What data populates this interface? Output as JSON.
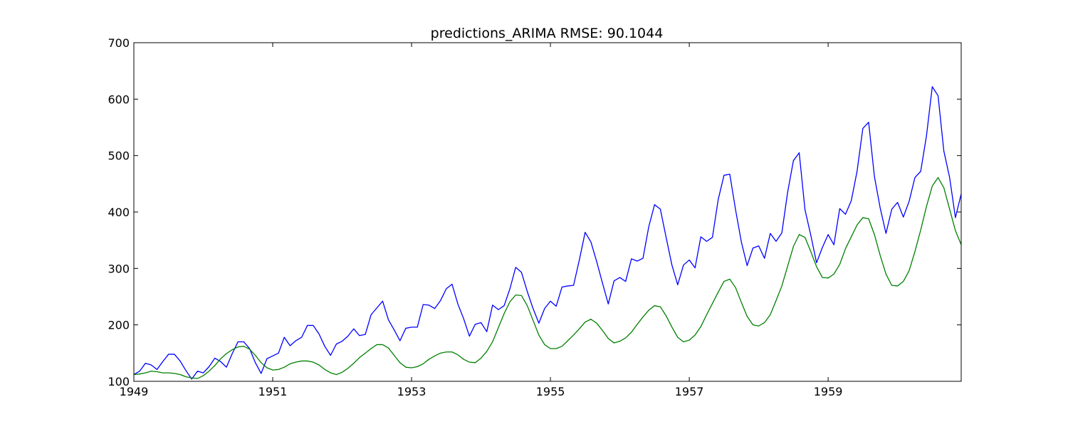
{
  "chart_data": {
    "type": "line",
    "title": "predictions_ARIMA RMSE: 90.1044",
    "xlabel": "",
    "ylabel": "",
    "x_start": "1949-01",
    "x_end": "1960-12",
    "xlim": [
      "1949-01",
      "1960-12"
    ],
    "ylim": [
      100,
      700
    ],
    "x_ticks": [
      "1949",
      "1951",
      "1953",
      "1955",
      "1957",
      "1959"
    ],
    "y_ticks": [
      100,
      200,
      300,
      400,
      500,
      600,
      700
    ],
    "grid": false,
    "legend": false,
    "colors": [
      "#0000ff",
      "#008000"
    ],
    "series": [
      {
        "color": "#0000ff",
        "values": [
          112,
          118,
          132,
          129,
          121,
          135,
          148,
          148,
          136,
          119,
          104,
          118,
          115,
          126,
          141,
          135,
          125,
          149,
          170,
          170,
          158,
          133,
          114,
          140,
          145,
          150,
          178,
          163,
          172,
          178,
          199,
          199,
          184,
          162,
          146,
          166,
          171,
          180,
          193,
          181,
          183,
          218,
          230,
          242,
          209,
          191,
          172,
          194,
          196,
          196,
          236,
          235,
          229,
          243,
          264,
          272,
          237,
          211,
          180,
          201,
          204,
          188,
          235,
          227,
          234,
          264,
          302,
          293,
          259,
          229,
          203,
          229,
          242,
          233,
          267,
          269,
          270,
          315,
          364,
          347,
          312,
          274,
          237,
          278,
          284,
          277,
          317,
          313,
          318,
          374,
          413,
          405,
          355,
          306,
          271,
          306,
          315,
          301,
          356,
          348,
          355,
          422,
          465,
          467,
          404,
          347,
          305,
          336,
          340,
          318,
          362,
          348,
          363,
          435,
          491,
          505,
          404,
          359,
          310,
          337,
          360,
          342,
          406,
          396,
          420,
          472,
          548,
          559,
          463,
          407,
          362,
          405,
          417,
          391,
          419,
          461,
          472,
          535,
          622,
          606,
          508,
          461,
          390,
          432
        ]
      },
      {
        "color": "#008000",
        "values": [
          112,
          113,
          115,
          118,
          117,
          115,
          115,
          114,
          112,
          108,
          106,
          105,
          110,
          118,
          128,
          140,
          149,
          156,
          161,
          162,
          157,
          146,
          133,
          124,
          120,
          121,
          125,
          131,
          134,
          136,
          136,
          134,
          129,
          121,
          115,
          112,
          116,
          123,
          132,
          142,
          150,
          158,
          165,
          165,
          159,
          146,
          133,
          125,
          124,
          126,
          131,
          139,
          145,
          150,
          152,
          152,
          147,
          139,
          134,
          133,
          141,
          153,
          170,
          195,
          220,
          241,
          253,
          252,
          234,
          208,
          182,
          165,
          158,
          158,
          162,
          172,
          182,
          193,
          205,
          210,
          203,
          190,
          176,
          168,
          171,
          177,
          187,
          201,
          214,
          226,
          234,
          232,
          216,
          196,
          178,
          170,
          173,
          182,
          197,
          218,
          238,
          258,
          277,
          281,
          266,
          240,
          215,
          200,
          198,
          204,
          218,
          243,
          269,
          304,
          339,
          360,
          355,
          330,
          303,
          284,
          283,
          290,
          307,
          335,
          356,
          377,
          390,
          388,
          360,
          323,
          290,
          270,
          269,
          277,
          296,
          330,
          368,
          410,
          446,
          461,
          443,
          405,
          367,
          342
        ]
      }
    ]
  }
}
